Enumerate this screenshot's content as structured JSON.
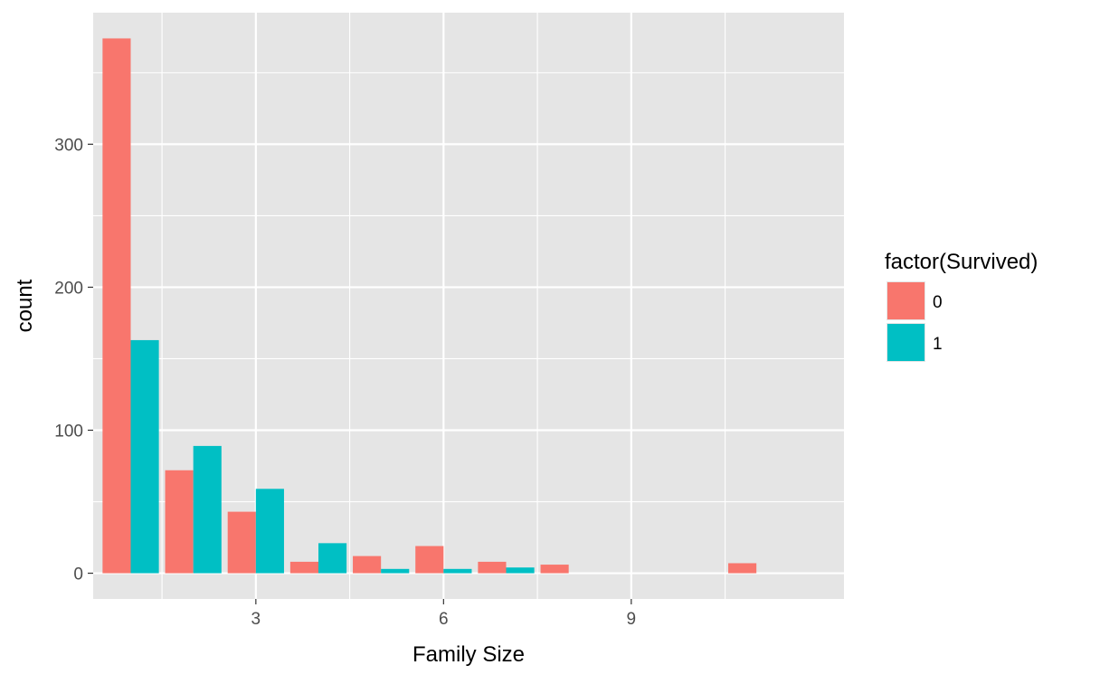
{
  "chart_data": {
    "type": "bar",
    "xlabel": "Family Size",
    "ylabel": "count",
    "xlim": [
      0.4,
      12.4
    ],
    "ylim": [
      -18,
      392
    ],
    "x_breaks": [
      3,
      6,
      9
    ],
    "x_tick_labels": [
      "3",
      "6",
      "9"
    ],
    "y_breaks": [
      0,
      100,
      200,
      300
    ],
    "y_tick_labels": [
      "0",
      "100",
      "200",
      "300"
    ],
    "bar_width": 0.45,
    "grid": true,
    "legend": {
      "title": "factor(Survived)",
      "placement": "right",
      "entries": [
        "0",
        "1"
      ]
    },
    "series": [
      {
        "name": "0",
        "color": "#F8766D",
        "points": [
          {
            "x": 1,
            "y": 374
          },
          {
            "x": 2,
            "y": 72
          },
          {
            "x": 3,
            "y": 43
          },
          {
            "x": 4,
            "y": 8
          },
          {
            "x": 5,
            "y": 12
          },
          {
            "x": 6,
            "y": 19
          },
          {
            "x": 7,
            "y": 8
          },
          {
            "x": 8,
            "y": 6
          },
          {
            "x": 11,
            "y": 7
          }
        ]
      },
      {
        "name": "1",
        "color": "#00BFC4",
        "points": [
          {
            "x": 1,
            "y": 163
          },
          {
            "x": 2,
            "y": 89
          },
          {
            "x": 3,
            "y": 59
          },
          {
            "x": 4,
            "y": 21
          },
          {
            "x": 5,
            "y": 3
          },
          {
            "x": 6,
            "y": 3
          },
          {
            "x": 7,
            "y": 4
          }
        ]
      }
    ]
  },
  "colors": {
    "panel_background": "#E5E5E5",
    "grid_line": "#FFFFFF",
    "tick_text": "#4D4D4D",
    "tick_mark": "#333333"
  }
}
